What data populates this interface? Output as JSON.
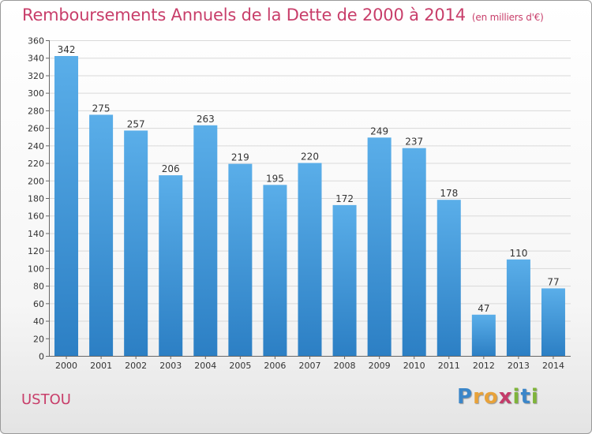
{
  "header": {
    "title": "Remboursements Annuels de la Dette de 2000 à 2014",
    "unit": "(en milliers d'€)"
  },
  "footer": {
    "commune": "USTOU",
    "logo_letters": [
      "P",
      "r",
      "o",
      "x",
      "i",
      "t",
      "i"
    ]
  },
  "colors": {
    "title": "#c83e6a",
    "bar_top": "#5aaee9",
    "bar_bottom": "#2c7fc4",
    "logo": [
      "#3b86c9",
      "#e8a23a",
      "#e8a23a",
      "#c43b6a",
      "#7fb43a",
      "#3b86c9",
      "#7fb43a"
    ]
  },
  "chart_data": {
    "type": "bar",
    "title": "Remboursements Annuels de la Dette de 2000 à 2014",
    "xlabel": "",
    "ylabel": "",
    "categories": [
      "2000",
      "2001",
      "2002",
      "2003",
      "2004",
      "2005",
      "2006",
      "2007",
      "2008",
      "2009",
      "2010",
      "2011",
      "2012",
      "2013",
      "2014"
    ],
    "values": [
      342,
      275,
      257,
      206,
      263,
      219,
      195,
      220,
      172,
      249,
      237,
      178,
      47,
      110,
      77
    ],
    "ylim": [
      0,
      360
    ],
    "yticks": [
      0,
      20,
      40,
      60,
      80,
      100,
      120,
      140,
      160,
      180,
      200,
      220,
      240,
      260,
      280,
      300,
      320,
      340,
      360
    ],
    "grid": true,
    "legend": "none"
  }
}
